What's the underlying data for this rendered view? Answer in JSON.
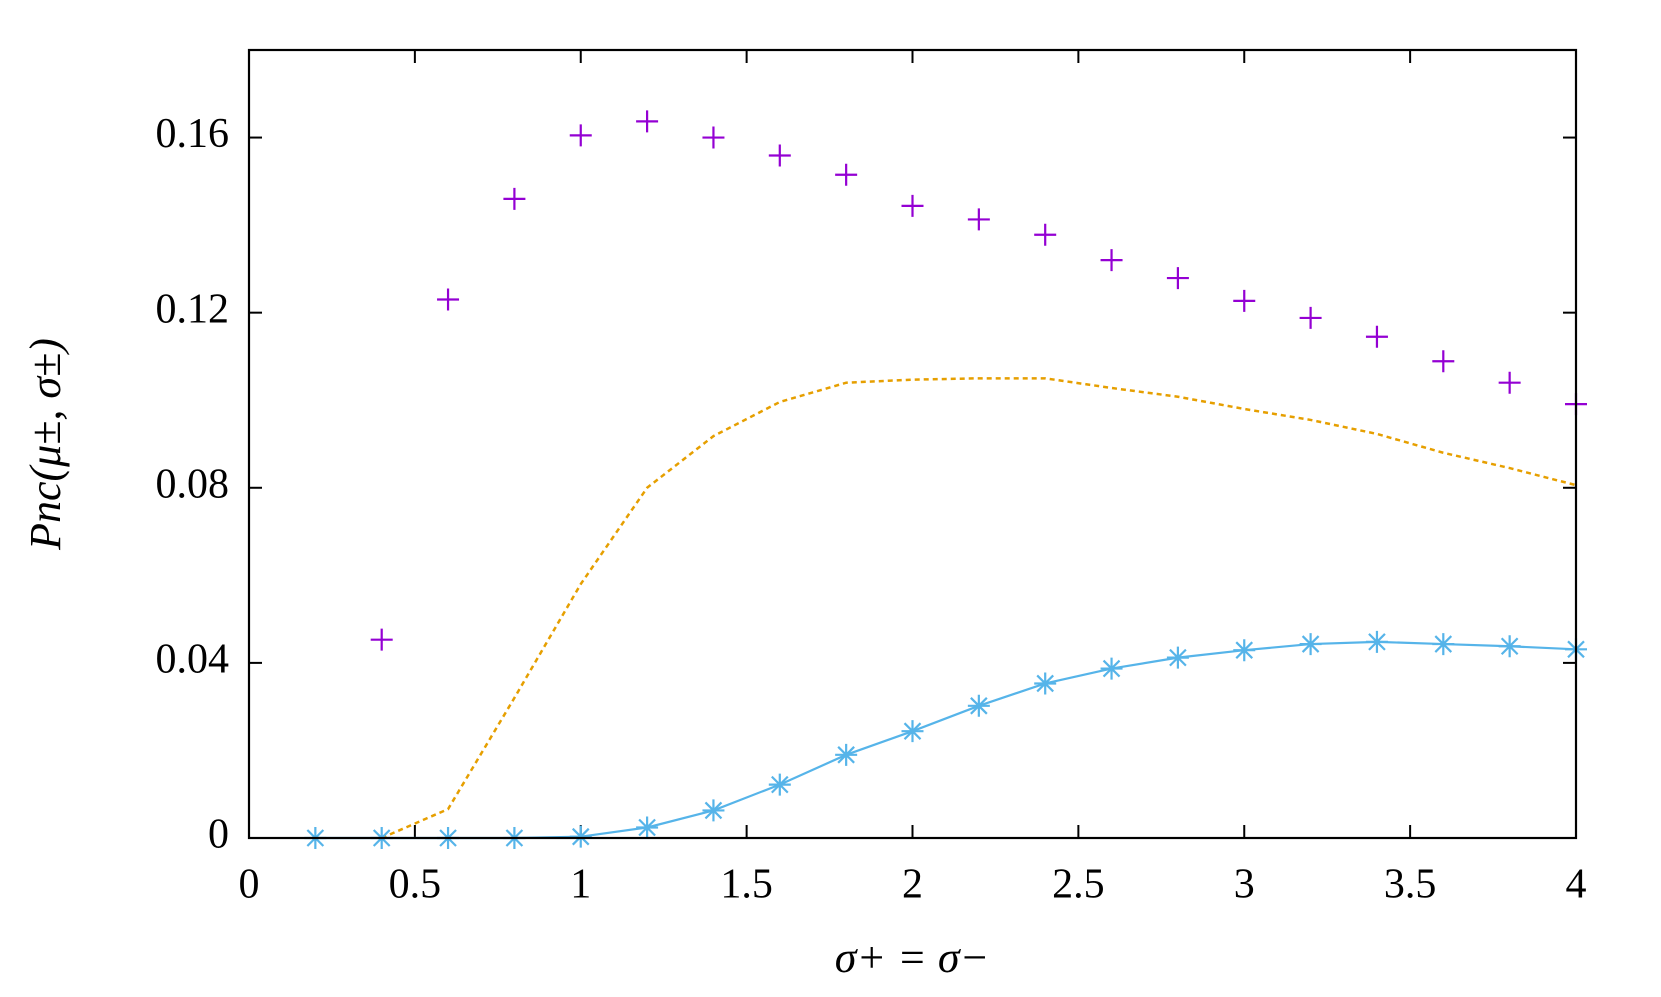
{
  "chart_data": {
    "type": "line",
    "xlabel": "σ+ = σ−",
    "ylabel": "Pnc(μ±, σ±)",
    "xlim": [
      0,
      4
    ],
    "ylim": [
      0,
      0.18
    ],
    "xticks": [
      0,
      0.5,
      1,
      1.5,
      2,
      2.5,
      3,
      3.5,
      4
    ],
    "yticks": [
      0,
      0.04,
      0.08,
      0.12,
      0.16
    ],
    "series": [
      {
        "color": "#9400d3",
        "marker": "plus",
        "line": "none",
        "x": [
          0.4,
          0.6,
          0.8,
          1.0,
          1.2,
          1.4,
          1.6,
          1.8,
          2.0,
          2.2,
          2.4,
          2.6,
          2.8,
          3.0,
          3.2,
          3.4,
          3.6,
          3.8,
          4.0
        ],
        "values": [
          0.0453,
          0.123,
          0.146,
          0.1605,
          0.1637,
          0.16,
          0.1559,
          0.1515,
          0.1444,
          0.1413,
          0.1378,
          0.132,
          0.1279,
          0.1227,
          0.1188,
          0.1145,
          0.1089,
          0.104,
          0.0991
        ]
      },
      {
        "color": "#e69f00",
        "marker": "none",
        "line": "dashed",
        "x": [
          0.4,
          0.6,
          0.8,
          1.0,
          1.2,
          1.4,
          1.6,
          1.8,
          2.0,
          2.2,
          2.4,
          2.6,
          2.8,
          3.0,
          3.2,
          3.4,
          3.6,
          3.8,
          4.0
        ],
        "values": [
          0,
          0.0066,
          0.032,
          0.058,
          0.08,
          0.0918,
          0.0996,
          0.104,
          0.1047,
          0.105,
          0.105,
          0.1028,
          0.1008,
          0.098,
          0.0955,
          0.0923,
          0.088,
          0.0845,
          0.0806
        ]
      },
      {
        "color": "#56b4e9",
        "marker": "asterisk",
        "line": "solid",
        "x": [
          0.2,
          0.4,
          0.6,
          0.8,
          1.0,
          1.2,
          1.4,
          1.6,
          1.8,
          2.0,
          2.2,
          2.4,
          2.6,
          2.8,
          3.0,
          3.2,
          3.4,
          3.6,
          3.8,
          4.0
        ],
        "values": [
          0,
          0,
          0,
          0,
          0.0003,
          0.0024,
          0.0063,
          0.0122,
          0.019,
          0.0244,
          0.0302,
          0.0353,
          0.0387,
          0.0412,
          0.0429,
          0.0443,
          0.0448,
          0.0443,
          0.0438,
          0.0431
        ]
      }
    ]
  }
}
